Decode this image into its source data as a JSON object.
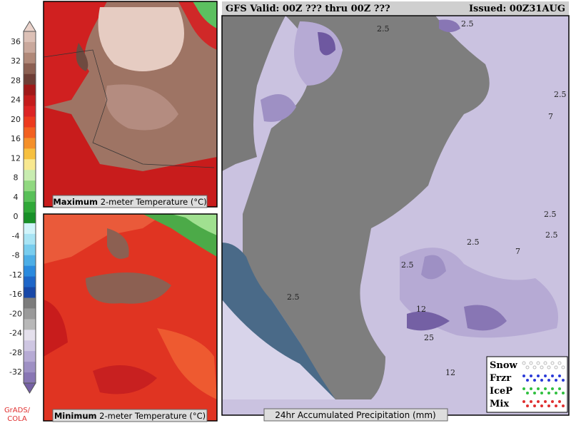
{
  "colorbar": {
    "labels": [
      36,
      32,
      28,
      24,
      20,
      16,
      12,
      8,
      4,
      0,
      -4,
      -8,
      -12,
      -16,
      -20,
      -24,
      -28,
      -32
    ],
    "colors": [
      "#ead2ca",
      "#dcc0b6",
      "#c9a89c",
      "#b08878",
      "#8c6052",
      "#6e3e36",
      "#a01818",
      "#c41c1c",
      "#dc2424",
      "#ec3a1e",
      "#f26020",
      "#f4902a",
      "#f6c040",
      "#f8e890",
      "#c8ecb0",
      "#90d880",
      "#58c058",
      "#30a838",
      "#189028",
      "#d0f4fa",
      "#a8e4f4",
      "#78cdee",
      "#4caee6",
      "#2a8ade",
      "#1e66c8",
      "#1848a8",
      "#7c7c7c",
      "#9a9a9a",
      "#b8b8b8",
      "#e4e0ec",
      "#cec6e2",
      "#b6aad4",
      "#9e90c4",
      "#8876b4",
      "#7460a4"
    ],
    "credit": "GrADS/ COLA"
  },
  "panel_max": {
    "caption_bold": "Maximum",
    "caption_rest": "2-meter Temperature (°C)"
  },
  "panel_min": {
    "caption_bold": "Minimum",
    "caption_rest": "2-meter Temperature (°C)"
  },
  "precip": {
    "header_left": "GFS Valid: 00Z ??? thru 00Z ???",
    "header_right": "Issued: 00Z31AUG",
    "caption": "24hr Accumulated Precipitation (mm)",
    "contour_labels": [
      "2.5",
      "2.5",
      "2.5",
      "7",
      "2.5",
      "2.5",
      "2.5",
      "7",
      "2.5",
      "2.5",
      "12",
      "25",
      "12"
    ],
    "legend": [
      {
        "label": "Snow",
        "color": "#ffffff"
      },
      {
        "label": "Frzr",
        "color": "#2a3ad8"
      },
      {
        "label": "IceP",
        "color": "#30c040"
      },
      {
        "label": "Mix",
        "color": "#e03030"
      }
    ]
  }
}
